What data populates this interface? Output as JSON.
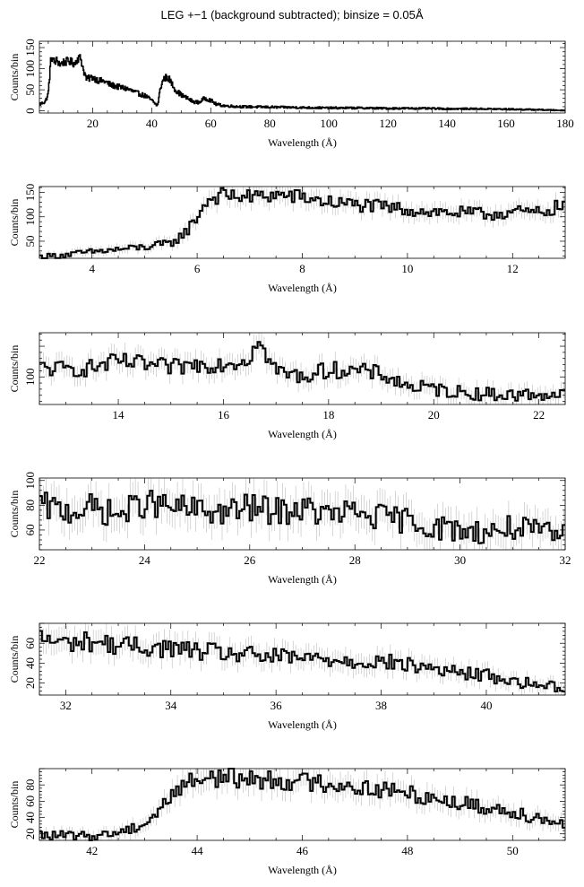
{
  "figure": {
    "title": "LEG +−1 (background subtracted); binsize = 0.05Å"
  },
  "chart_data": [
    {
      "type": "line",
      "style": "step histogram with error bars",
      "title": "LEG +−1 (background subtracted); binsize = 0.05Å",
      "xlabel": "Wavelength (Å)",
      "ylabel": "Counts/bin",
      "xlim": [
        2,
        180
      ],
      "ylim": [
        -5,
        165
      ],
      "xticks": [
        20,
        40,
        60,
        80,
        100,
        120,
        140,
        160,
        180
      ],
      "yticks": [
        0,
        50,
        100,
        150
      ],
      "x": [
        2,
        4,
        5,
        6,
        7,
        8,
        9,
        10,
        12,
        14,
        15,
        16,
        17,
        18,
        20,
        22,
        24,
        26,
        28,
        30,
        32,
        34,
        36,
        38,
        40,
        42,
        43,
        44,
        45,
        46,
        48,
        50,
        52,
        54,
        56,
        58,
        60,
        62,
        65,
        70,
        80,
        90,
        100,
        110,
        120,
        130,
        140,
        150,
        160,
        170,
        175,
        180
      ],
      "y": [
        15,
        22,
        40,
        130,
        115,
        120,
        110,
        115,
        118,
        112,
        125,
        125,
        95,
        75,
        80,
        72,
        70,
        62,
        58,
        55,
        52,
        45,
        40,
        35,
        25,
        12,
        55,
        75,
        80,
        75,
        50,
        38,
        30,
        22,
        20,
        30,
        25,
        15,
        12,
        10,
        9,
        8,
        7,
        7,
        6,
        6,
        5,
        5,
        4,
        3,
        2,
        1
      ],
      "grid": false
    },
    {
      "type": "line",
      "style": "step histogram with error bars",
      "xlabel": "Wavelength (Å)",
      "ylabel": "Counts/bin",
      "xlim": [
        3,
        13
      ],
      "ylim": [
        15,
        162
      ],
      "xticks": [
        4,
        6,
        8,
        10,
        12
      ],
      "yticks": [
        50,
        100,
        150
      ],
      "x": [
        3.0,
        3.5,
        4.0,
        4.5,
        5.0,
        5.5,
        5.8,
        6.0,
        6.2,
        6.5,
        7.0,
        7.5,
        8.0,
        8.5,
        9.0,
        9.5,
        10.0,
        10.5,
        11.0,
        11.5,
        12.0,
        12.5,
        13.0
      ],
      "y": [
        18,
        22,
        28,
        33,
        38,
        45,
        70,
        100,
        135,
        145,
        140,
        145,
        140,
        130,
        125,
        120,
        115,
        110,
        108,
        105,
        110,
        108,
        125
      ],
      "grid": false
    },
    {
      "type": "line",
      "style": "step histogram with error bars",
      "xlabel": "Wavelength (Å)",
      "ylabel": "Counts/bin",
      "xlim": [
        12.5,
        22.5
      ],
      "ylim": [
        55,
        172
      ],
      "xticks": [
        14,
        16,
        18,
        20,
        22
      ],
      "yticks": [
        100
      ],
      "x": [
        12.5,
        13.0,
        13.5,
        14.0,
        14.5,
        15.0,
        15.5,
        16.0,
        16.5,
        16.6,
        17.0,
        17.5,
        18.0,
        18.5,
        19.0,
        19.5,
        20.0,
        20.5,
        21.0,
        21.5,
        22.0,
        22.5
      ],
      "y": [
        115,
        112,
        115,
        125,
        120,
        115,
        120,
        122,
        128,
        165,
        110,
        100,
        112,
        110,
        105,
        85,
        80,
        75,
        72,
        70,
        72,
        70
      ],
      "grid": false
    },
    {
      "type": "line",
      "style": "step histogram with error bars",
      "xlabel": "Wavelength (Å)",
      "ylabel": "Counts/bin",
      "xlim": [
        22,
        32
      ],
      "ylim": [
        44,
        102
      ],
      "xticks": [
        22,
        24,
        26,
        28,
        30,
        32
      ],
      "yticks": [
        60,
        80,
        100
      ],
      "x": [
        22,
        22.5,
        23,
        23.5,
        24,
        24.5,
        25,
        25.5,
        26,
        26.5,
        27,
        27.5,
        28,
        28.5,
        29,
        29.5,
        30,
        30.5,
        31,
        31.5,
        32
      ],
      "y": [
        80,
        75,
        78,
        72,
        82,
        78,
        76,
        74,
        78,
        75,
        77,
        72,
        74,
        70,
        68,
        62,
        60,
        58,
        62,
        58,
        55
      ],
      "grid": false
    },
    {
      "type": "line",
      "style": "step histogram with error bars",
      "xlabel": "Wavelength (Å)",
      "ylabel": "Counts/bin",
      "xlim": [
        31.5,
        41.5
      ],
      "ylim": [
        8,
        80
      ],
      "xticks": [
        32,
        34,
        36,
        38,
        40
      ],
      "yticks": [
        20,
        40,
        60
      ],
      "x": [
        31.5,
        32,
        32.5,
        33,
        33.5,
        34,
        34.5,
        35,
        35.5,
        36,
        36.5,
        37,
        37.5,
        38,
        38.5,
        39,
        39.5,
        40,
        40.5,
        41,
        41.5
      ],
      "y": [
        65,
        60,
        62,
        58,
        56,
        55,
        52,
        50,
        48,
        46,
        45,
        44,
        42,
        42,
        38,
        35,
        30,
        28,
        22,
        18,
        16
      ],
      "grid": false
    },
    {
      "type": "line",
      "style": "step histogram with error bars",
      "xlabel": "Wavelength (Å)",
      "ylabel": "Counts/bin",
      "xlim": [
        41,
        51
      ],
      "ylim": [
        12,
        100
      ],
      "xticks": [
        42,
        44,
        46,
        48,
        50
      ],
      "yticks": [
        20,
        40,
        60,
        80
      ],
      "x": [
        41,
        41.5,
        42,
        42.5,
        43,
        43.3,
        43.6,
        44,
        44.5,
        45,
        45.5,
        46,
        46.5,
        47,
        47.5,
        48,
        48.5,
        49,
        49.5,
        50,
        50.5,
        51
      ],
      "y": [
        18,
        18,
        17,
        22,
        32,
        50,
        75,
        88,
        90,
        87,
        86,
        84,
        82,
        78,
        74,
        70,
        64,
        58,
        52,
        48,
        40,
        32
      ],
      "grid": false
    }
  ]
}
